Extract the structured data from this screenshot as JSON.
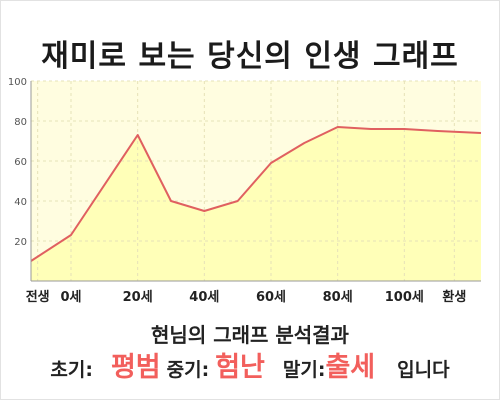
{
  "title": "재미로 보는 당신의 인생 그래프",
  "colors": {
    "plot_background": "#fffde0",
    "area_fill": "#ffffb8",
    "line": "#e06060",
    "grid": "#e6e2b8",
    "highlight_text": "#f25f5c"
  },
  "chart_data": {
    "type": "area",
    "title": "",
    "xlabel": "",
    "ylabel": "",
    "ylim": [
      0,
      100
    ],
    "yticks": [
      20,
      40,
      60,
      80,
      100
    ],
    "xticks": [
      {
        "x": -10,
        "label": "전생"
      },
      {
        "x": 0,
        "label": "0세"
      },
      {
        "x": 20,
        "label": "20세"
      },
      {
        "x": 40,
        "label": "40세"
      },
      {
        "x": 60,
        "label": "60세"
      },
      {
        "x": 80,
        "label": "80세"
      },
      {
        "x": 100,
        "label": "100세"
      },
      {
        "x": 115,
        "label": "환생"
      }
    ],
    "xlim": [
      -12,
      123
    ],
    "grid": true,
    "series": [
      {
        "points": [
          {
            "x": -12,
            "y": 10
          },
          {
            "x": 0,
            "y": 23
          },
          {
            "x": 20,
            "y": 73
          },
          {
            "x": 30,
            "y": 40
          },
          {
            "x": 40,
            "y": 35
          },
          {
            "x": 50,
            "y": 40
          },
          {
            "x": 60,
            "y": 59
          },
          {
            "x": 70,
            "y": 69
          },
          {
            "x": 80,
            "y": 77
          },
          {
            "x": 90,
            "y": 76
          },
          {
            "x": 100,
            "y": 76
          },
          {
            "x": 110,
            "y": 75
          },
          {
            "x": 123,
            "y": 74
          }
        ]
      }
    ]
  },
  "result": {
    "heading": "현님의 그래프 분석결과",
    "early_label": "초기:",
    "early_value": "평범",
    "middle_label": "중기:",
    "middle_value": "험난",
    "late_label": "말기:",
    "late_value": "출세",
    "ending": "입니다"
  }
}
